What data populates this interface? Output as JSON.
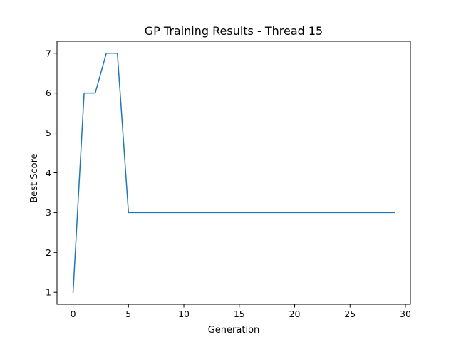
{
  "chart_data": {
    "type": "line",
    "title": "GP Training Results - Thread 15",
    "xlabel": "Generation",
    "ylabel": "Best Score",
    "xlim": [
      -1.45,
      30.45
    ],
    "ylim": [
      0.7,
      7.3
    ],
    "xticks": [
      0,
      5,
      10,
      15,
      20,
      25,
      30
    ],
    "yticks": [
      1,
      2,
      3,
      4,
      5,
      6,
      7
    ],
    "grid": false,
    "series": [
      {
        "color": "#1f77b4",
        "x": [
          0,
          1,
          2,
          3,
          4,
          5,
          6,
          7,
          8,
          9,
          10,
          11,
          12,
          13,
          14,
          15,
          16,
          17,
          18,
          19,
          20,
          21,
          22,
          23,
          24,
          25,
          26,
          27,
          28,
          29
        ],
        "y": [
          1,
          6,
          6,
          7,
          7,
          3,
          3,
          3,
          3,
          3,
          3,
          3,
          3,
          3,
          3,
          3,
          3,
          3,
          3,
          3,
          3,
          3,
          3,
          3,
          3,
          3,
          3,
          3,
          3,
          3
        ]
      }
    ]
  }
}
